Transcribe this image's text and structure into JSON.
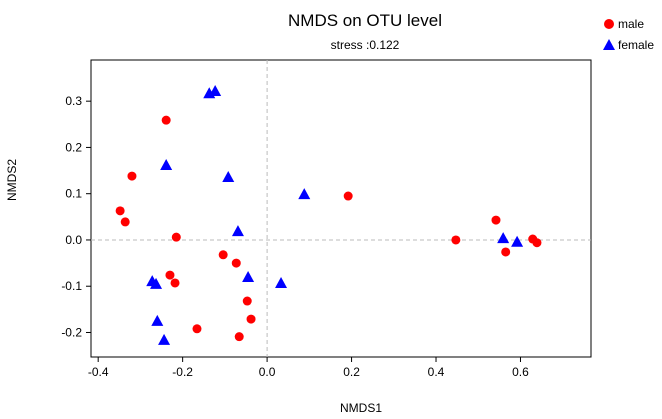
{
  "chart_data": {
    "type": "scatter",
    "title": "NMDS on OTU level",
    "subtitle": "stress :0.122",
    "xlabel": "NMDS1",
    "ylabel": "NMDS2",
    "xlim": [
      -0.417,
      0.767
    ],
    "ylim": [
      -0.253,
      0.389
    ],
    "xticks": [
      -0.4,
      -0.2,
      0.0,
      0.2,
      0.4,
      0.6
    ],
    "xtick_labels": [
      "-0.4",
      "-0.2",
      "0.0",
      "0.2",
      "0.4",
      "0.6"
    ],
    "yticks": [
      -0.2,
      -0.1,
      0.0,
      0.1,
      0.2,
      0.3
    ],
    "ytick_labels": [
      "-0.2",
      "-0.1",
      "0.0",
      "0.1",
      "0.2",
      "0.3"
    ],
    "reference_lines": {
      "x": 0,
      "y": 0
    },
    "legend_position": "top-right",
    "series": [
      {
        "name": "male",
        "marker": "circle",
        "color": "#ff0000",
        "points": [
          [
            -0.239,
            0.259
          ],
          [
            -0.32,
            0.138
          ],
          [
            -0.348,
            0.063
          ],
          [
            -0.336,
            0.039
          ],
          [
            -0.215,
            0.006
          ],
          [
            -0.104,
            -0.032
          ],
          [
            -0.073,
            -0.05
          ],
          [
            -0.23,
            -0.076
          ],
          [
            -0.218,
            -0.093
          ],
          [
            -0.047,
            -0.132
          ],
          [
            -0.038,
            -0.171
          ],
          [
            -0.166,
            -0.192
          ],
          [
            -0.066,
            -0.209
          ],
          [
            0.192,
            0.095
          ],
          [
            0.447,
            0.0
          ],
          [
            0.542,
            0.043
          ],
          [
            0.565,
            -0.026
          ],
          [
            0.629,
            0.002
          ],
          [
            0.639,
            -0.006
          ]
        ]
      },
      {
        "name": "female",
        "marker": "triangle",
        "color": "#0000ff",
        "points": [
          [
            -0.137,
            0.317
          ],
          [
            -0.123,
            0.322
          ],
          [
            -0.239,
            0.162
          ],
          [
            -0.092,
            0.136
          ],
          [
            0.088,
            0.099
          ],
          [
            -0.069,
            0.019
          ],
          [
            -0.272,
            -0.089
          ],
          [
            -0.263,
            -0.095
          ],
          [
            -0.045,
            -0.08
          ],
          [
            0.033,
            -0.093
          ],
          [
            -0.26,
            -0.175
          ],
          [
            -0.244,
            -0.216
          ],
          [
            0.559,
            0.004
          ],
          [
            0.592,
            -0.004
          ]
        ]
      }
    ]
  }
}
